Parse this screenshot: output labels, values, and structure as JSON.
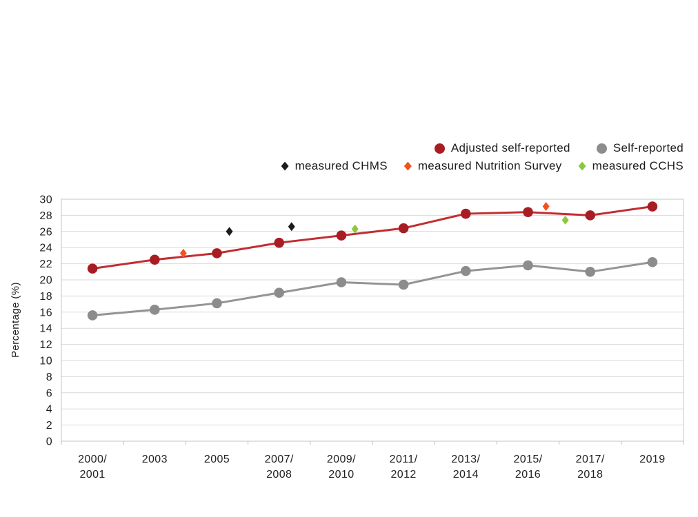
{
  "chart_data": {
    "type": "line",
    "title": "",
    "xlabel": "",
    "ylabel": "Percentage (%)",
    "ylim": [
      0,
      30
    ],
    "y_ticks": [
      0,
      2,
      4,
      6,
      8,
      10,
      12,
      14,
      16,
      18,
      20,
      22,
      24,
      26,
      28,
      30
    ],
    "grid": "horizontal",
    "legend_position": "top-right",
    "grid_color": "#d9d9d9",
    "border_color": "#c6c6c6",
    "tick_color": "#bdbdbd",
    "text_color": "#212121",
    "categories": [
      [
        "2000/",
        "2001"
      ],
      [
        "2003"
      ],
      [
        "2005"
      ],
      [
        "2007/",
        "2008"
      ],
      [
        "2009/",
        "2010"
      ],
      [
        "2011/",
        "2012"
      ],
      [
        "2013/",
        "2014"
      ],
      [
        "2015/",
        "2016"
      ],
      [
        "2017/",
        "2018"
      ],
      [
        "2019"
      ]
    ],
    "series": [
      {
        "name": "Adjusted self-reported",
        "color": "#a81d23",
        "line_color": "#c22d31",
        "values": [
          21.4,
          22.5,
          23.3,
          24.6,
          25.5,
          26.4,
          28.2,
          28.4,
          28.0,
          29.1
        ]
      },
      {
        "name": "Self-reported",
        "color": "#8c8c8c",
        "line_color": "#949494",
        "values": [
          15.6,
          16.3,
          17.1,
          18.4,
          19.7,
          19.4,
          21.1,
          21.8,
          21.0,
          22.2
        ]
      }
    ],
    "scatter_series": [
      {
        "name": "measured CHMS",
        "color": "#1c1c1c",
        "points": [
          {
            "x": 2.2,
            "y": 26.0
          },
          {
            "x": 3.2,
            "y": 26.6
          }
        ]
      },
      {
        "name": "measured Nutrition Survey",
        "color": "#f4511e",
        "points": [
          {
            "x": 1.46,
            "y": 23.3
          },
          {
            "x": 7.29,
            "y": 29.1
          }
        ]
      },
      {
        "name": "measured CCHS",
        "color": "#8dc63f",
        "points": [
          {
            "x": 4.22,
            "y": 26.3
          },
          {
            "x": 7.6,
            "y": 27.4
          }
        ]
      }
    ]
  }
}
